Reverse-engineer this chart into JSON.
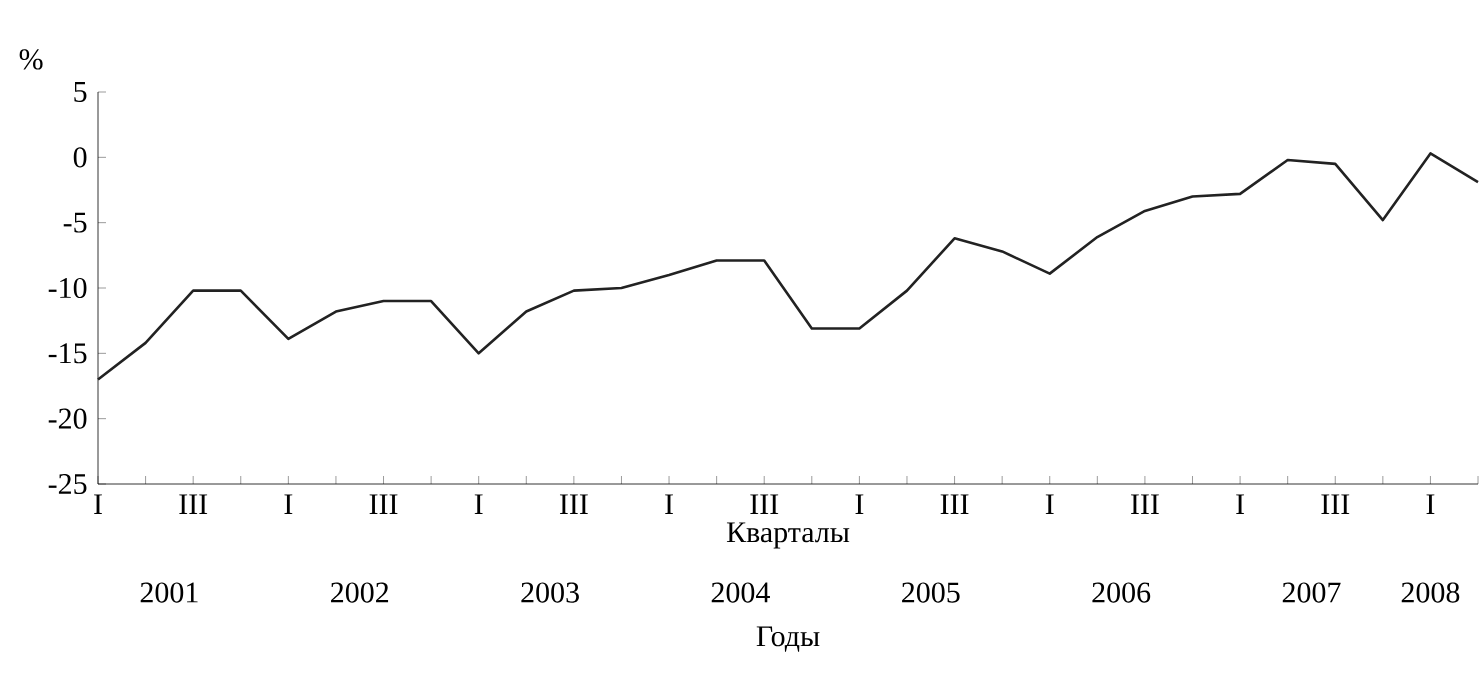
{
  "chart_data": {
    "type": "line",
    "xlabel": "Кварталы",
    "ylabel": "%",
    "categories": [
      "I",
      null,
      "III",
      null,
      "I",
      null,
      "III",
      null,
      "I",
      null,
      "III",
      null,
      "I",
      null,
      "III",
      null,
      "I",
      null,
      "III",
      null,
      "I",
      null,
      "III",
      null,
      "I",
      null,
      "III",
      null,
      "I",
      null
    ],
    "series": [
      {
        "color": "#222222",
        "values": [
          -17,
          -14.2,
          -10.2,
          -10.2,
          -13.9,
          -11.8,
          -11,
          -11,
          -15,
          -11.8,
          -10.2,
          -10,
          -9,
          -7.9,
          -7.9,
          -13.1,
          -13.1,
          -10.2,
          -6.2,
          -7.2,
          -8.9,
          -6.1,
          -4.1,
          -3,
          -2.8,
          -0.2,
          -0.5,
          -4.8,
          0.3,
          -1.9
        ]
      }
    ],
    "ylim": [
      -25,
      5
    ],
    "yticks": [
      -25,
      -20,
      -15,
      -10,
      -5,
      0,
      5
    ],
    "annotations": [
      "2001",
      "2002",
      "2003",
      "2004",
      "2005",
      "2006",
      "2007",
      "2008",
      "Годы"
    ],
    "marker": "none",
    "line_style": "solid",
    "grid": false
  }
}
